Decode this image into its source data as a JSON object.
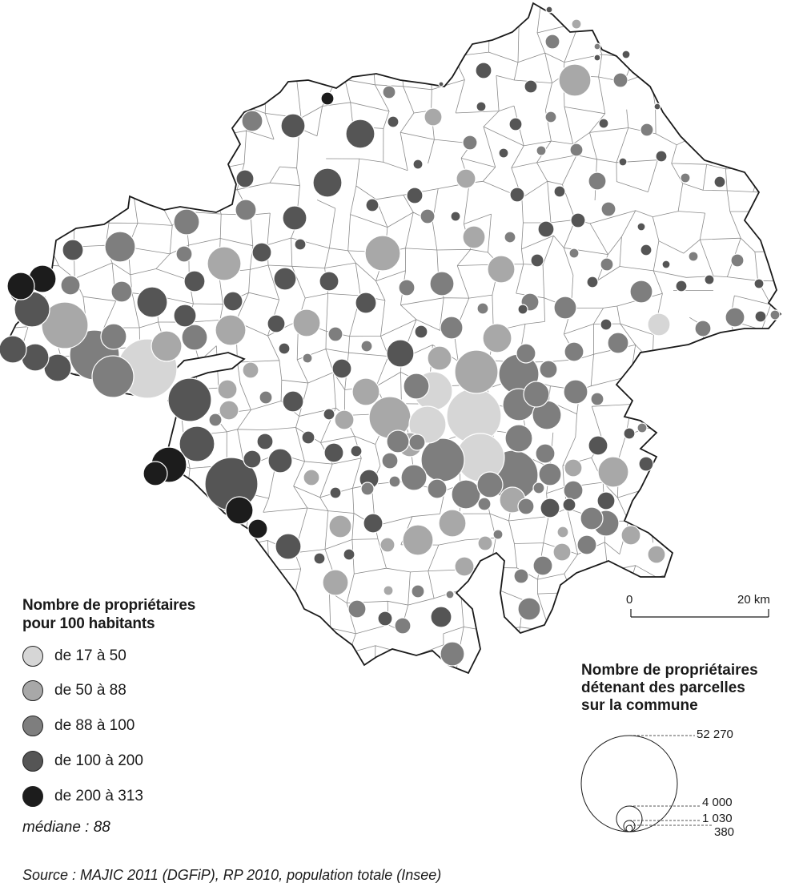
{
  "legend_color": {
    "title_line1": "Nombre de propriétaires",
    "title_line2": "pour 100 habitants",
    "classes": [
      {
        "label": "de 17 à 50",
        "color": "#d6d6d6"
      },
      {
        "label": "de 50 à 88",
        "color": "#a8a8a8"
      },
      {
        "label": "de 88 à 100",
        "color": "#7e7e7e"
      },
      {
        "label": "de 100 à 200",
        "color": "#555555"
      },
      {
        "label": "de 200 à 313",
        "color": "#1c1c1c"
      }
    ],
    "median": "médiane : 88"
  },
  "legend_size": {
    "title_line1": "Nombre de propriétaires",
    "title_line2": "détenant des parcelles",
    "title_line3": "sur la commune",
    "values": [
      "52 270",
      "4 000",
      "1 030",
      "380"
    ]
  },
  "scale": {
    "start": "0",
    "end": "20 km"
  },
  "source": "Source : MAJIC 2011 (DGFiP), RP 2010, population totale (Insee)"
}
